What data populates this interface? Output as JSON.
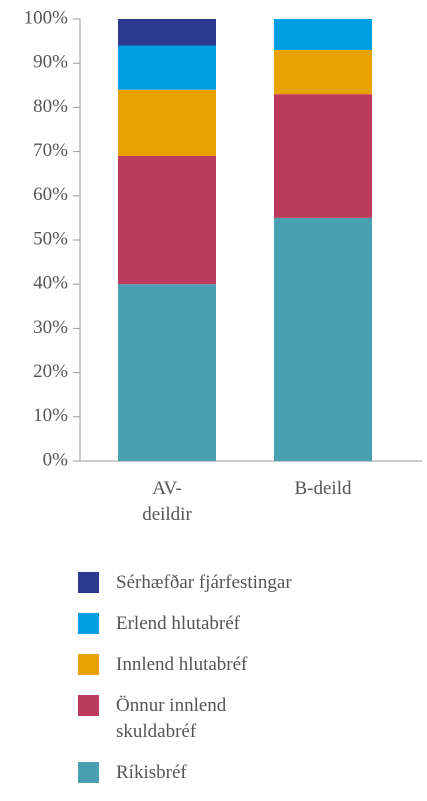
{
  "chart_data": {
    "type": "stacked_bar",
    "categories": [
      "AV-deildir",
      "B-deild"
    ],
    "series": [
      {
        "name": "Ríkisbréf",
        "color": "#4aa0b1",
        "values": [
          40,
          55
        ]
      },
      {
        "name": "Önnur innlend skuldabréf",
        "color": "#bc3a5c",
        "values": [
          29,
          28
        ]
      },
      {
        "name": "Innlend hlutabréf",
        "color": "#e8a300",
        "values": [
          15,
          10
        ]
      },
      {
        "name": "Erlend hlutabréf",
        "color": "#009fe3",
        "values": [
          10,
          7
        ]
      },
      {
        "name": "Sérhæfðar fjárfestingar",
        "color": "#2b3990",
        "values": [
          6,
          0
        ]
      }
    ],
    "ylim": [
      0,
      100
    ],
    "yticks": [
      {
        "value": 0,
        "label": "0%"
      },
      {
        "value": 10,
        "label": "10%"
      },
      {
        "value": 20,
        "label": "20%"
      },
      {
        "value": 30,
        "label": "30%"
      },
      {
        "value": 40,
        "label": "40%"
      },
      {
        "value": 50,
        "label": "50%"
      },
      {
        "value": 60,
        "label": "60%"
      },
      {
        "value": 70,
        "label": "70%"
      },
      {
        "value": 80,
        "label": "80%"
      },
      {
        "value": 90,
        "label": "90%"
      },
      {
        "value": 100,
        "label": "100%"
      }
    ],
    "legend": "bottom"
  }
}
